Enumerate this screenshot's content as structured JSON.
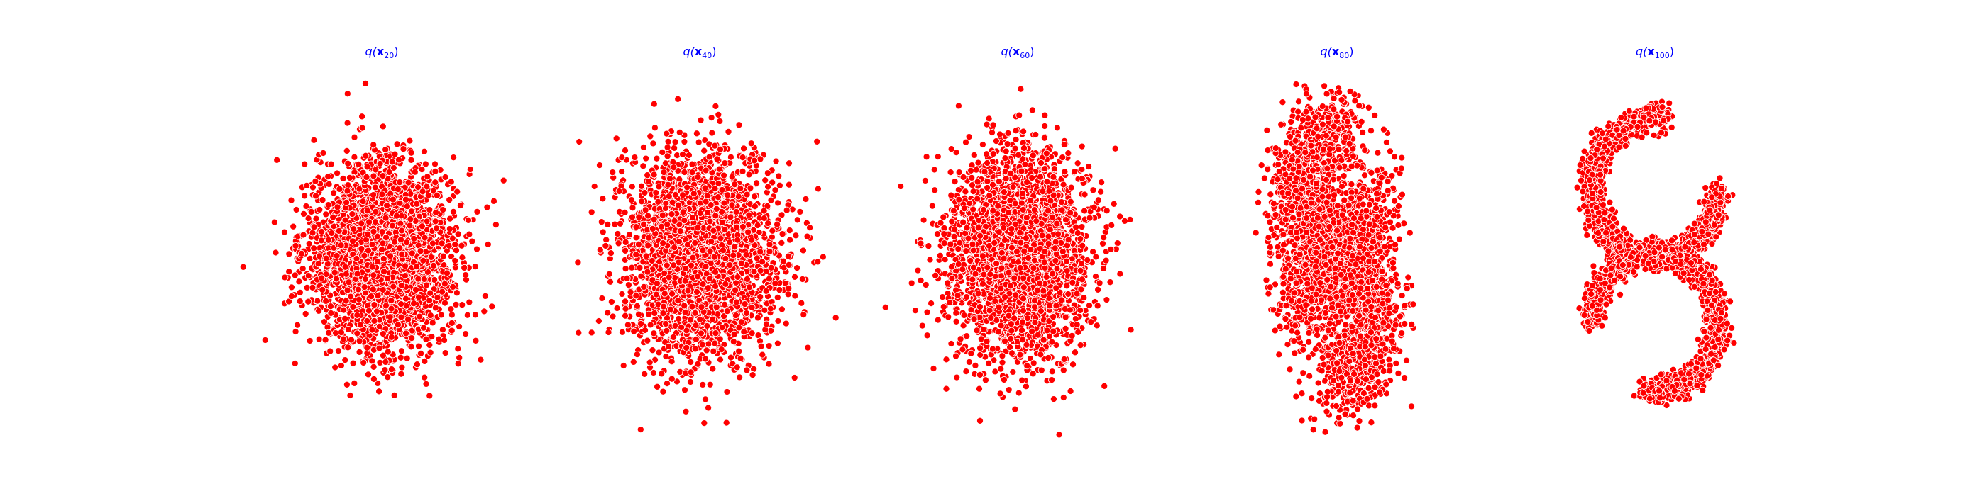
{
  "figure": {
    "background": "#ffffff",
    "point_color": "#ff0000",
    "point_edge_color": "#ffffff",
    "title_color": "#0000ff"
  },
  "chart_data": [
    {
      "type": "scatter",
      "title": "q(x20)",
      "title_parts": {
        "base": "q(",
        "sym": "x",
        "sub": "20",
        "close": ")"
      },
      "xlim": [
        -5,
        5
      ],
      "ylim": [
        -5.5,
        5.5
      ],
      "axes_visible": false,
      "grid": false,
      "distribution": {
        "shape": "gaussian",
        "mean": [
          0,
          0
        ],
        "std": [
          1.2,
          1.4
        ],
        "n_points": 3000
      }
    },
    {
      "type": "scatter",
      "title": "q(x40)",
      "title_parts": {
        "base": "q(",
        "sym": "x",
        "sub": "40",
        "close": ")"
      },
      "xlim": [
        -5,
        5
      ],
      "ylim": [
        -5.5,
        5.5
      ],
      "axes_visible": false,
      "grid": false,
      "distribution": {
        "shape": "gaussian",
        "mean": [
          0,
          0
        ],
        "std": [
          1.25,
          1.5
        ],
        "n_points": 3000
      }
    },
    {
      "type": "scatter",
      "title": "q(x60)",
      "title_parts": {
        "base": "q(",
        "sym": "x",
        "sub": "60",
        "close": ")"
      },
      "xlim": [
        -5,
        5
      ],
      "ylim": [
        -5.5,
        5.5
      ],
      "axes_visible": false,
      "grid": false,
      "distribution": {
        "shape": "gaussian",
        "mean": [
          0,
          0
        ],
        "std": [
          1.15,
          1.55
        ],
        "n_points": 3000
      }
    },
    {
      "type": "scatter",
      "title": "q(x80)",
      "title_parts": {
        "base": "q(",
        "sym": "x",
        "sub": "80",
        "close": ")"
      },
      "xlim": [
        -5,
        5
      ],
      "ylim": [
        -5.5,
        5.5
      ],
      "axes_visible": false,
      "grid": false,
      "distribution": {
        "shape": "s-curve",
        "sharpness": 0.55,
        "n_points": 3000
      }
    },
    {
      "type": "scatter",
      "title": "q(x100)",
      "title_parts": {
        "base": "q(",
        "sym": "x",
        "sub": "100",
        "close": ")"
      },
      "xlim": [
        -5,
        5
      ],
      "ylim": [
        -5.5,
        5.5
      ],
      "axes_visible": false,
      "grid": false,
      "distribution": {
        "shape": "s-curve",
        "sharpness": 1.0,
        "n_points": 3000
      }
    }
  ]
}
